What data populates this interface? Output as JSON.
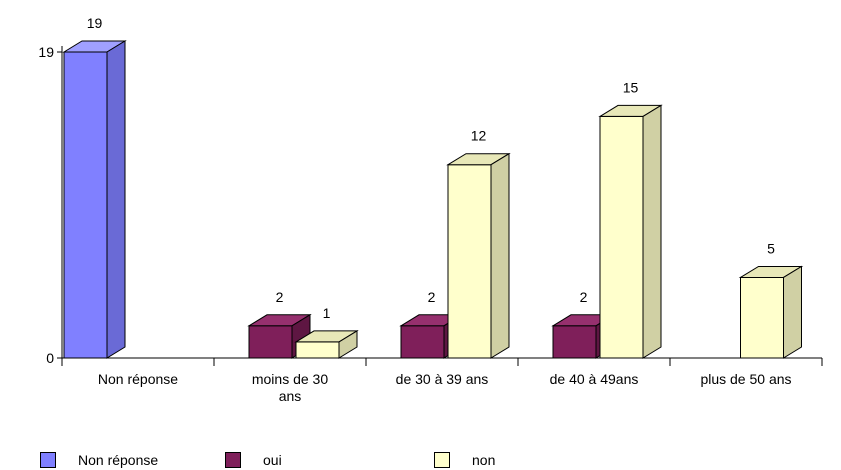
{
  "chart_data": {
    "type": "bar",
    "categories": [
      "Non réponse",
      "moins de 30 ans",
      "de 30 à 39 ans",
      "de 40 à 49ans",
      "plus de 50 ans"
    ],
    "category_lines": [
      [
        "Non réponse"
      ],
      [
        "moins de 30",
        "ans"
      ],
      [
        "de 30 à 39 ans"
      ],
      [
        "de 40 à 49ans"
      ],
      [
        "plus de 50 ans"
      ]
    ],
    "series": [
      {
        "name": "Non réponse",
        "values": [
          19,
          null,
          null,
          null,
          null
        ],
        "color": "#8080ff",
        "side_color": "#6a6ad6",
        "top_color": "#a0a0ff"
      },
      {
        "name": "oui",
        "values": [
          null,
          2,
          2,
          2,
          null
        ],
        "color": "#7f1f5a",
        "side_color": "#5e1642",
        "top_color": "#96306e"
      },
      {
        "name": "non",
        "values": [
          null,
          1,
          12,
          15,
          5
        ],
        "color": "#ffffcc",
        "side_color": "#d0d0a4",
        "top_color": "#e8e8b8"
      }
    ],
    "y_ticks": [
      0,
      19
    ],
    "ylim": [
      0,
      19
    ],
    "three_d": true,
    "legend_position": "bottom"
  }
}
